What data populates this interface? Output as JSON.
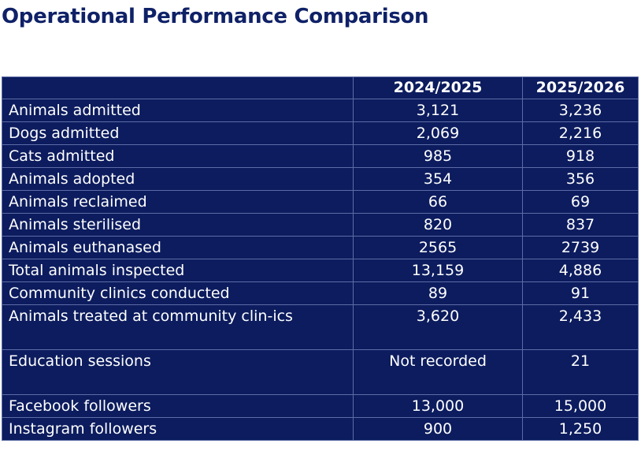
{
  "title": "Operational Performance Comparison",
  "table": {
    "headers": [
      "",
      "2024/2025",
      "2025/2026"
    ],
    "rows": [
      {
        "label": "Animals admitted",
        "y2024": "3,121",
        "y2025": "3,236"
      },
      {
        "label": "Dogs admitted",
        "y2024": "2,069",
        "y2025": "2,216"
      },
      {
        "label": "Cats admitted",
        "y2024": "985",
        "y2025": "918"
      },
      {
        "label": "Animals adopted",
        "y2024": "354",
        "y2025": "356"
      },
      {
        "label": "Animals reclaimed",
        "y2024": "66",
        "y2025": "69"
      },
      {
        "label": "Animals sterilised",
        "y2024": "820",
        "y2025": "837"
      },
      {
        "label": "Animals euthanased",
        "y2024": "2565",
        "y2025": "2739"
      },
      {
        "label": "Total animals inspected",
        "y2024": "13,159",
        "y2025": "4,886"
      },
      {
        "label": "Community clinics conducted",
        "y2024": "89",
        "y2025": "91"
      },
      {
        "label": "Animals treated at community clin-ics",
        "y2024": "3,620",
        "y2025": "2,433"
      },
      {
        "label": "Education sessions",
        "y2024": "Not recorded",
        "y2025": "21"
      },
      {
        "label": "Facebook followers",
        "y2024": "13,000",
        "y2025": "15,000"
      },
      {
        "label": "Instagram followers",
        "y2024": "900",
        "y2025": "1,250"
      }
    ]
  },
  "colors": {
    "title": "#0f2167",
    "table_background": "#0c1c5e",
    "table_text": "#ffffff",
    "grid_lines": "#5d6ca6"
  }
}
